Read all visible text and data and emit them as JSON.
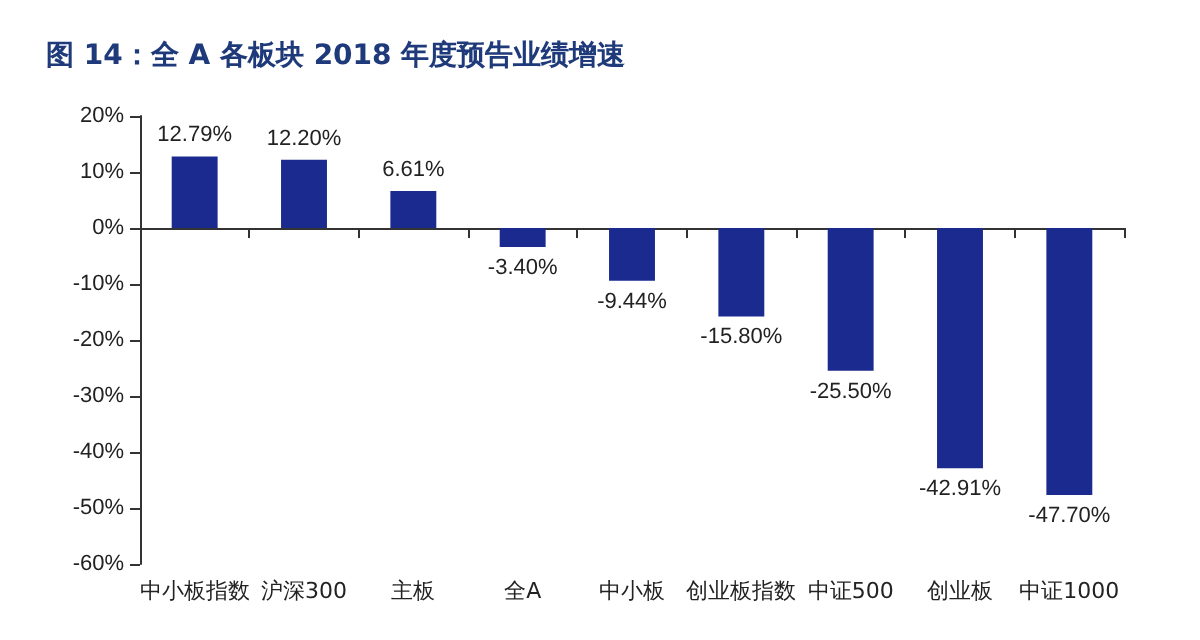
{
  "chart_data": {
    "type": "bar",
    "title": "图 14：全 A 各板块 2018 年度预告业绩增速",
    "categories": [
      "中小板指数",
      "沪深300",
      "主板",
      "全A",
      "中小板",
      "创业板指数",
      "中证500",
      "创业板",
      "中证1000"
    ],
    "values": [
      12.79,
      12.2,
      6.61,
      -3.4,
      -9.44,
      -15.8,
      -25.5,
      -42.91,
      -47.7
    ],
    "value_labels": [
      "12.79%",
      "12.20%",
      "6.61%",
      "-3.40%",
      "-9.44%",
      "-15.80%",
      "-25.50%",
      "-42.91%",
      "-47.70%"
    ],
    "color": "#1a2a8f",
    "ylim": [
      -60,
      20
    ],
    "yticks": [
      {
        "value": -60,
        "label": "-60%"
      },
      {
        "value": -50,
        "label": "-50%"
      },
      {
        "value": -40,
        "label": "-40%"
      },
      {
        "value": -30,
        "label": "-30%"
      },
      {
        "value": -20,
        "label": "-20%"
      },
      {
        "value": -10,
        "label": "-10%"
      },
      {
        "value": 0,
        "label": "0%"
      },
      {
        "value": 10,
        "label": "10%"
      },
      {
        "value": 20,
        "label": "20%"
      }
    ],
    "orientation": "vertical"
  }
}
